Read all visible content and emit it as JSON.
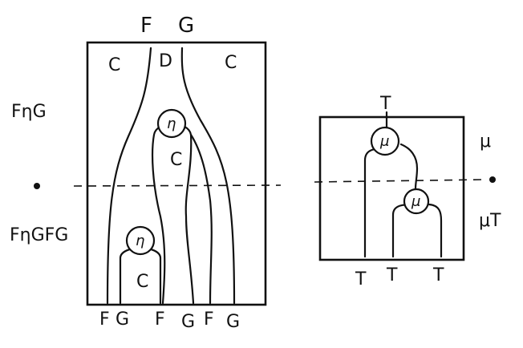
{
  "left_diagram": {
    "top_labels": [
      "F",
      "G"
    ],
    "region_labels": [
      "C",
      "D",
      "C",
      "C",
      "C"
    ],
    "node_labels": [
      "η",
      "η"
    ],
    "bottom_labels": [
      "F",
      "G",
      "F",
      "G",
      "F",
      "G"
    ]
  },
  "right_diagram": {
    "top_label": "T",
    "node_labels": [
      "μ",
      "μ"
    ],
    "bottom_labels": [
      "T",
      "T",
      "T"
    ],
    "side_labels": [
      "μ",
      "μT"
    ]
  },
  "side_labels": {
    "upper": "FηG",
    "lower": "FηGFG"
  }
}
